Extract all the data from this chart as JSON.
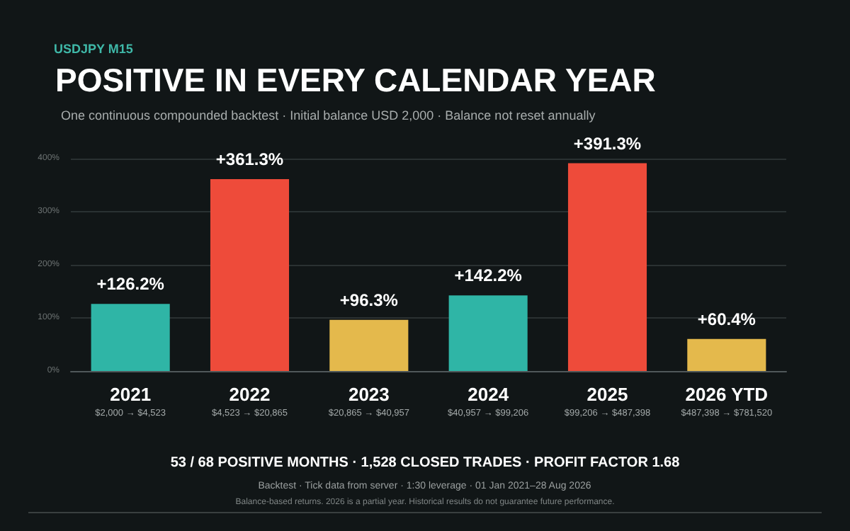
{
  "chart_data": {
    "type": "bar",
    "title": "POSITIVE IN EVERY CALENDAR YEAR",
    "subtitle": "One continuous compounded backtest · Initial balance USD 2,000 · Balance not reset annually",
    "categories": [
      "2021",
      "2022",
      "2023",
      "2024",
      "2025",
      "2026 YTD"
    ],
    "values": [
      126.2,
      361.3,
      96.3,
      142.2,
      391.3,
      60.4
    ],
    "colors": [
      "#2fb5a6",
      "#ee4b3a",
      "#e4b94c",
      "#2fb5a6",
      "#ee4b3a",
      "#e4b94c"
    ],
    "value_labels": [
      "+126.2%",
      "+361.3%",
      "+96.3%",
      "+142.2%",
      "+391.3%",
      "+60.4%"
    ],
    "ylim": [
      0,
      400
    ],
    "yticks": [
      {
        "value": 0,
        "label": "0%"
      },
      {
        "value": 100,
        "label": "100%"
      },
      {
        "value": 200,
        "label": "200%"
      },
      {
        "value": 300,
        "label": "300%"
      },
      {
        "value": 400,
        "label": "400%"
      }
    ],
    "grid": "y",
    "annotations": [
      "USDJPY M15",
      "$2,000 → $4,523",
      "$4,523 → $20,865",
      "$20,865 → $40,957",
      "$40,957 → $99,206",
      "$99,206 → $487,398",
      "$487,398 → $781,520",
      "53 / 68 POSITIVE MONTHS · 1,528 CLOSED TRADES · PROFIT FACTOR 1.68",
      "Backtest · Tick data from server · 1:30 leverage · 01 Jan 2021–28 Aug 2026",
      "Balance-based returns. 2026 is a partial year. Historical results do not guarantee future performance."
    ]
  }
}
